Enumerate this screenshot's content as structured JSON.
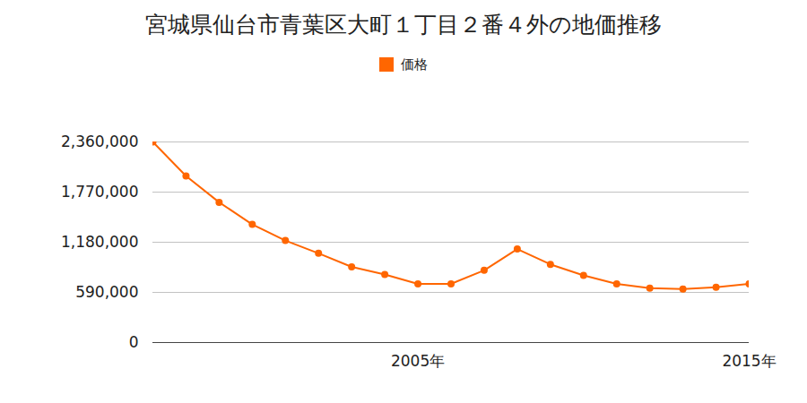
{
  "chart_data": {
    "type": "line",
    "title": "宮城県仙台市青葉区大町１丁目２番４外の地価推移",
    "x": [
      1997,
      1998,
      1999,
      2000,
      2001,
      2002,
      2003,
      2004,
      2005,
      2006,
      2007,
      2008,
      2009,
      2010,
      2011,
      2012,
      2013,
      2014,
      2015
    ],
    "series": [
      {
        "name": "価格",
        "color": "#ff6600",
        "marker": "circle",
        "values": [
          2360000,
          1960000,
          1650000,
          1390000,
          1200000,
          1050000,
          890000,
          800000,
          690000,
          690000,
          850000,
          1100000,
          920000,
          790000,
          690000,
          640000,
          630000,
          650000,
          690000
        ]
      }
    ],
    "xlim": [
      1997,
      2015
    ],
    "xticks": [
      {
        "value": 2005,
        "label": "2005年"
      },
      {
        "value": 2015,
        "label": "2015年"
      }
    ],
    "ylim": [
      0,
      2360000
    ],
    "yticks": [
      0,
      {
        "value": 590000,
        "label": "590,000"
      },
      {
        "value": 1180000,
        "label": "1,180,000"
      },
      {
        "value": 1770000,
        "label": "1,770,000"
      },
      {
        "value": 2360000,
        "label": "2,360,000"
      }
    ],
    "grid": true,
    "legend": "top"
  }
}
